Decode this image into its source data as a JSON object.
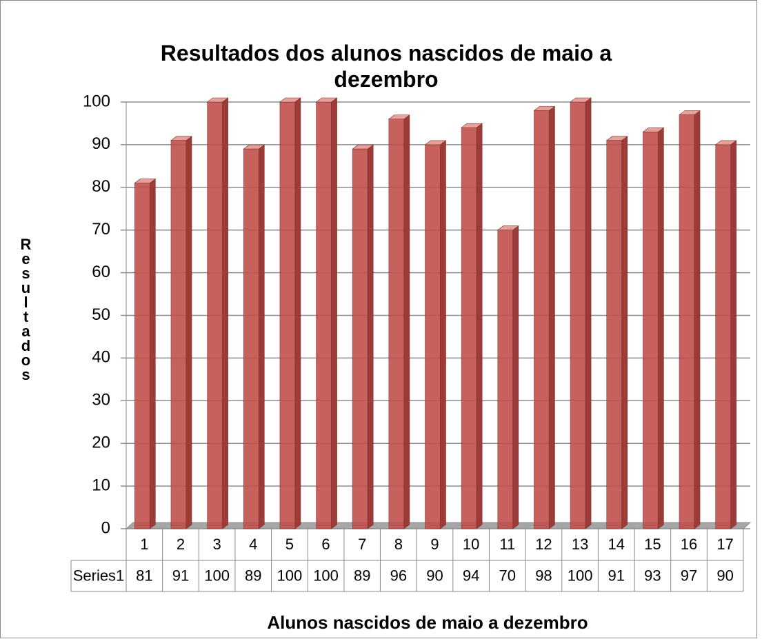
{
  "chart_data": {
    "type": "bar",
    "title": "Resultados dos alunos nascidos de maio a dezembro",
    "x_label": "Alunos nascidos de maio a dezembro",
    "y_label": "Resultados",
    "categories": [
      "1",
      "2",
      "3",
      "4",
      "5",
      "6",
      "7",
      "8",
      "9",
      "10",
      "11",
      "12",
      "13",
      "14",
      "15",
      "16",
      "17"
    ],
    "series": [
      {
        "name": "Series1",
        "color": "#c0504d",
        "values": [
          81,
          91,
          100,
          89,
          100,
          100,
          89,
          96,
          90,
          94,
          70,
          98,
          100,
          91,
          93,
          97,
          90
        ]
      }
    ],
    "ylim": [
      0,
      100
    ],
    "yticks": [
      0,
      10,
      20,
      30,
      40,
      50,
      60,
      70,
      80,
      90,
      100
    ],
    "grid": true
  }
}
